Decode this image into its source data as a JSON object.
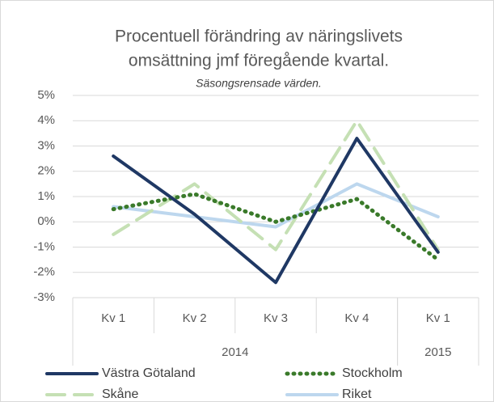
{
  "chart_data": {
    "type": "line",
    "title": [
      "Procentuell förändring av näringslivets",
      "omsättning jmf föregående kvartal."
    ],
    "subtitle": "Säsongsrensade värden.",
    "categories": [
      "Kv 1",
      "Kv 2",
      "Kv 3",
      "Kv 4",
      "Kv 1"
    ],
    "groups": [
      {
        "name": "2014",
        "count": 4
      },
      {
        "name": "2015",
        "count": 1
      }
    ],
    "series": [
      {
        "name": "Västra Götaland",
        "color": "#1f3864",
        "style": "solid",
        "values": [
          2.6,
          0.3,
          -2.4,
          3.3,
          -1.2
        ]
      },
      {
        "name": "Stockholm",
        "color": "#3a7a2a",
        "style": "dotted",
        "values": [
          0.5,
          1.1,
          0.0,
          0.9,
          -1.5
        ]
      },
      {
        "name": "Skåne",
        "color": "#c5e0b4",
        "style": "dashed",
        "values": [
          -0.5,
          1.5,
          -1.1,
          4.0,
          -1.1
        ]
      },
      {
        "name": "Riket",
        "color": "#bdd7ee",
        "style": "solid",
        "values": [
          0.6,
          0.2,
          -0.2,
          1.5,
          0.2
        ]
      }
    ],
    "ylim": [
      -3,
      5
    ],
    "yticks": [
      {
        "value": -3,
        "label": "-3%"
      },
      {
        "value": -2,
        "label": "-2%"
      },
      {
        "value": -1,
        "label": "-1%"
      },
      {
        "value": 0,
        "label": "0%"
      },
      {
        "value": 1,
        "label": "1%"
      },
      {
        "value": 2,
        "label": "2%"
      },
      {
        "value": 3,
        "label": "3%"
      },
      {
        "value": 4,
        "label": "4%"
      },
      {
        "value": 5,
        "label": "5%"
      }
    ],
    "grid": true,
    "legend": "bottom"
  }
}
